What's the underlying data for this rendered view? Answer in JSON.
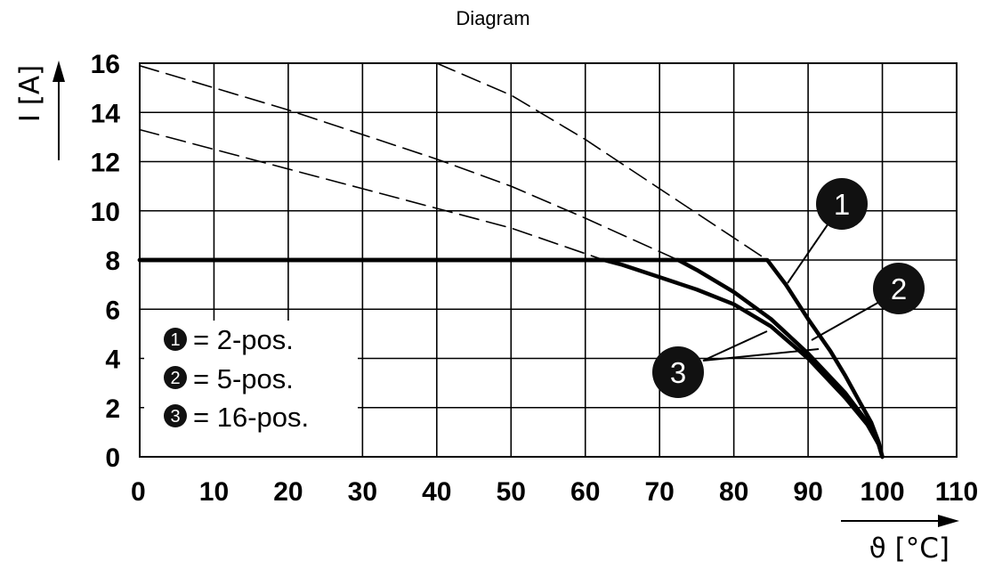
{
  "chart_data": {
    "type": "line",
    "title": "Diagram",
    "xlabel": "ϑ [°C]",
    "ylabel": "I [A]",
    "xlim": [
      0,
      110
    ],
    "ylim": [
      0,
      16
    ],
    "x_ticks": [
      0,
      10,
      20,
      30,
      40,
      50,
      60,
      70,
      80,
      90,
      100,
      110
    ],
    "y_ticks": [
      0,
      2,
      4,
      6,
      8,
      10,
      12,
      14,
      16
    ],
    "grid": true,
    "legend_position": "bottom-left",
    "legend": [
      {
        "id": "1",
        "label": "= 2-pos."
      },
      {
        "id": "2",
        "label": "= 5-pos."
      },
      {
        "id": "3",
        "label": "= 16-pos."
      }
    ],
    "series": [
      {
        "name": "1",
        "style": "solid",
        "x": [
          0,
          84.5,
          87,
          90,
          93,
          95,
          97,
          98.5,
          99.5,
          100
        ],
        "y": [
          8,
          8,
          7.0,
          5.6,
          4.3,
          3.3,
          2.2,
          1.4,
          0.6,
          0
        ]
      },
      {
        "name": "2",
        "style": "solid",
        "x": [
          0,
          72.5,
          75,
          80,
          85,
          90,
          95,
          98,
          99.5,
          100
        ],
        "y": [
          8,
          8,
          7.6,
          6.7,
          5.6,
          4.2,
          2.6,
          1.4,
          0.5,
          0
        ]
      },
      {
        "name": "3",
        "style": "solid",
        "x": [
          0,
          62.5,
          65,
          70,
          75,
          80,
          85,
          90,
          95,
          98,
          99.5,
          100
        ],
        "y": [
          8,
          8,
          7.8,
          7.3,
          6.8,
          6.2,
          5.3,
          4.0,
          2.4,
          1.3,
          0.5,
          0
        ]
      },
      {
        "name": "1",
        "style": "dashed",
        "x": [
          40,
          50,
          60,
          70,
          80,
          84.5
        ],
        "y": [
          16,
          14.7,
          12.9,
          10.9,
          8.9,
          8
        ]
      },
      {
        "name": "2",
        "style": "dashed",
        "x": [
          0,
          10,
          20,
          30,
          40,
          50,
          60,
          72.5
        ],
        "y": [
          15.9,
          15.0,
          14.1,
          13.1,
          12.1,
          11.0,
          9.7,
          8
        ]
      },
      {
        "name": "3",
        "style": "dashed",
        "x": [
          0,
          10,
          20,
          30,
          40,
          50,
          62.5
        ],
        "y": [
          13.3,
          12.5,
          11.7,
          10.9,
          10.1,
          9.3,
          8
        ]
      }
    ]
  }
}
